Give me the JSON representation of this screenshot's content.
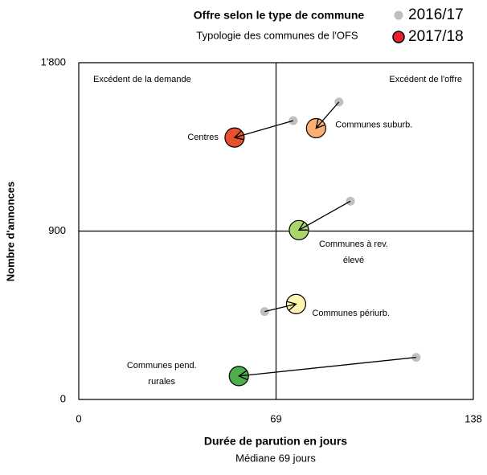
{
  "chart_data": {
    "type": "scatter",
    "title": "Offre selon le type de commune",
    "subtitle": "Typologie des communes de l'OFS",
    "x_label": "Durée de parution en jours",
    "x_note": "Médiane 69 jours",
    "y_label": "Nombre d'annonces",
    "annotations": [
      "Excédent de la demande",
      "Excédent de l'offre"
    ],
    "point_labels": [
      [
        "Centres"
      ],
      [
        "Communes suburb."
      ],
      [
        "Communes à rev.",
        "élevé"
      ],
      [
        "Communes périurb."
      ],
      [
        "Communes pend.",
        "rurales"
      ]
    ],
    "series": [
      {
        "name": "2016/17",
        "color": "#bfbfbf",
        "x": [
          75,
          91,
          95,
          65,
          118
        ],
        "values": [
          1490,
          1590,
          1060,
          470,
          225
        ]
      },
      {
        "name": "2017/18",
        "color": "#e8202a",
        "colors": [
          "#e8502f",
          "#f9b072",
          "#a9d56b",
          "#fdf6b2",
          "#4cae4c"
        ],
        "x": [
          54.5,
          83,
          77,
          76,
          56
        ],
        "values": [
          1400,
          1450,
          905,
          510,
          125
        ]
      }
    ],
    "xlim": [
      0,
      138
    ],
    "xticks": [
      0,
      69,
      138
    ],
    "ylim": [
      0,
      1800
    ],
    "yticks": [
      0,
      900,
      {
        "value": 1800,
        "label": "1'800"
      }
    ],
    "grid": true,
    "legend": "top-right"
  }
}
